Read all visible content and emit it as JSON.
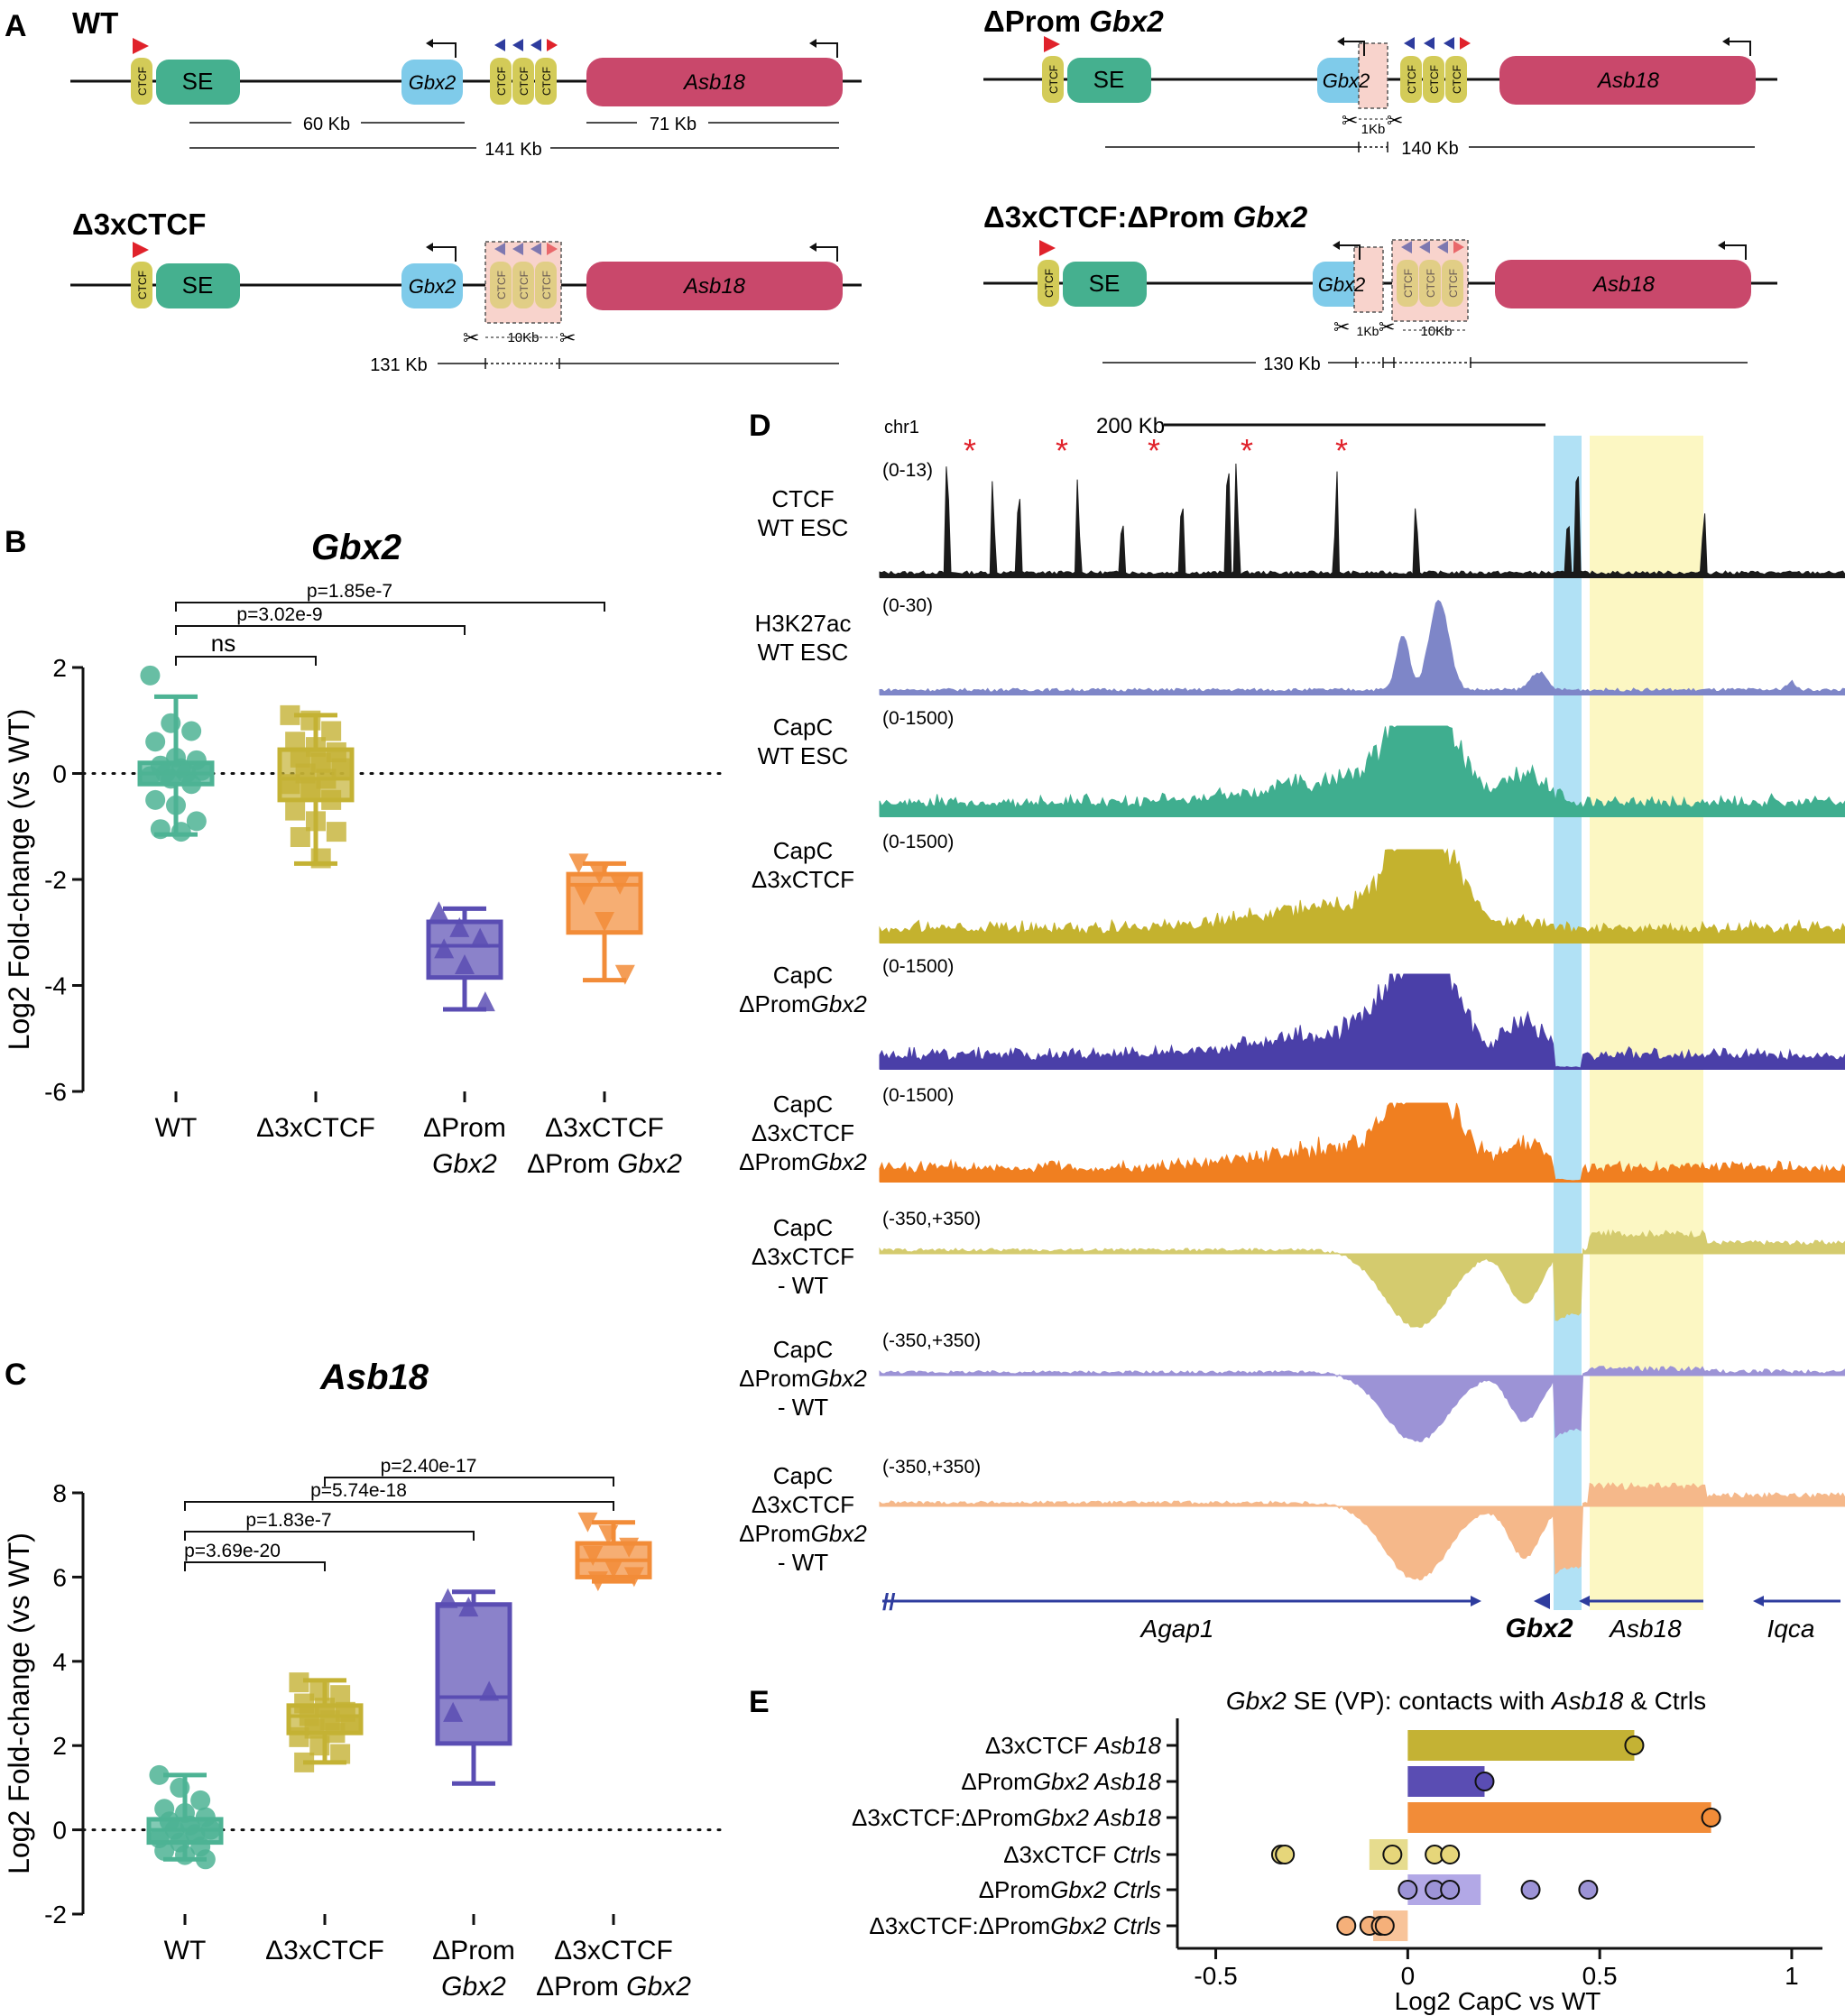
{
  "figure": {
    "panel_labels": [
      "A",
      "B",
      "C",
      "D",
      "E"
    ],
    "colors": {
      "wt": "#4DB394",
      "d3xctcf": "#C4B234",
      "dprom": "#5A4DB3",
      "double": "#F28C38",
      "se": "#45B08F",
      "gbx2": "#7FCBEA",
      "asb18": "#C9486B",
      "ctcf": "#D3CB58",
      "arrow_red": "#E0222B",
      "arrow_blue": "#2E3C9E",
      "cut": "#F8D3CC",
      "blue_band": "#9ED9F2",
      "yellow_band": "#FBF6B8"
    }
  },
  "panel_a": {
    "constructs": [
      {
        "title": "WT",
        "se": "SE",
        "gene1": "Gbx2",
        "gene2": "Asb18",
        "ctcf": "CTCF",
        "dist": [
          "60 Kb",
          "71 Kb",
          "141 Kb"
        ]
      },
      {
        "title_a": "ΔProm ",
        "title_b": "Gbx2",
        "se": "SE",
        "gene1": "Gbx2",
        "gene2": "Asb18",
        "ctcf": "CTCF",
        "cut": "1Kb",
        "dist": [
          "140 Kb"
        ]
      },
      {
        "title": "Δ3xCTCF",
        "se": "SE",
        "gene1": "Gbx2",
        "gene2": "Asb18",
        "ctcf": "CTCF",
        "cut": "10Kb",
        "dist": [
          "131 Kb"
        ]
      },
      {
        "title_a": "Δ3xCTCF:ΔProm ",
        "title_b": "Gbx2",
        "se": "SE",
        "gene1": "Gbx2",
        "gene2": "Asb18",
        "ctcf": "CTCF",
        "cut1": "1Kb",
        "cut2": "10Kb",
        "dist": [
          "130 Kb"
        ]
      }
    ]
  },
  "chart_data": [
    {
      "type": "box",
      "panel": "B",
      "title": "Gbx2",
      "ylabel": "Log2 Fold-change (vs WT)",
      "ylim": [
        -6,
        2
      ],
      "yticks": [
        "2",
        "0",
        "-2",
        "-4",
        "-6"
      ],
      "categories": [
        "WT",
        "Δ3xCTCF",
        "ΔProm Gbx2",
        "Δ3xCTCF ΔProm Gbx2"
      ],
      "xtick_lines": [
        [
          "WT"
        ],
        [
          "Δ3xCTCF"
        ],
        [
          "ΔProm",
          "Gbx2"
        ],
        [
          "Δ3xCTCF",
          "ΔProm Gbx2"
        ]
      ],
      "boxes": [
        {
          "min": -1.15,
          "q1": -0.2,
          "median": 0.0,
          "q3": 0.2,
          "max": 1.45
        },
        {
          "min": -1.7,
          "q1": -0.5,
          "median": -0.1,
          "q3": 0.45,
          "max": 1.1
        },
        {
          "min": -4.45,
          "q1": -3.85,
          "median": -3.25,
          "q3": -2.8,
          "max": -2.55
        },
        {
          "min": -3.9,
          "q1": -3.0,
          "median": -2.1,
          "q3": -1.9,
          "max": -1.7
        }
      ],
      "points": [
        [
          1.85,
          0.95,
          0.8,
          0.6,
          0.3,
          0.25,
          0.15,
          0.1,
          0.05,
          0.0,
          0.0,
          -0.05,
          -0.1,
          -0.2,
          -0.5,
          -0.6,
          -0.9,
          -1.05,
          -1.1
        ],
        [
          1.1,
          1.0,
          0.8,
          0.6,
          0.5,
          0.4,
          0.3,
          0.2,
          0.1,
          0.0,
          -0.1,
          -0.2,
          -0.3,
          -0.5,
          -0.7,
          -0.9,
          -1.1,
          -1.2,
          -1.6
        ],
        [
          -2.6,
          -2.9,
          -3.1,
          -3.3,
          -3.6,
          -4.3
        ],
        [
          -1.7,
          -1.9,
          -2.1,
          -2.3,
          -2.8,
          -3.8
        ]
      ],
      "markers": [
        "circle",
        "square",
        "triangle-up",
        "triangle-down"
      ],
      "comparisons": [
        {
          "label": "p=1.85e-7",
          "from": 0,
          "to": 3
        },
        {
          "label": "p=3.02e-9",
          "from": 0,
          "to": 2
        },
        {
          "label": "ns",
          "from": 0,
          "to": 1
        }
      ]
    },
    {
      "type": "box",
      "panel": "C",
      "title": "Asb18",
      "ylabel": "Log2 Fold-change (vs WT)",
      "ylim": [
        -2,
        8
      ],
      "yticks": [
        "8",
        "6",
        "4",
        "2",
        "0",
        "-2"
      ],
      "categories": [
        "WT",
        "Δ3xCTCF",
        "ΔProm Gbx2",
        "Δ3xCTCF ΔProm Gbx2"
      ],
      "xtick_lines": [
        [
          "WT"
        ],
        [
          "Δ3xCTCF"
        ],
        [
          "ΔProm",
          "Gbx2"
        ],
        [
          "Δ3xCTCF",
          "ΔProm Gbx2"
        ]
      ],
      "boxes": [
        {
          "min": -0.7,
          "q1": -0.3,
          "median": 0.0,
          "q3": 0.25,
          "max": 1.3
        },
        {
          "min": 1.6,
          "q1": 2.3,
          "median": 2.7,
          "q3": 2.95,
          "max": 3.55
        },
        {
          "min": 1.1,
          "q1": 2.05,
          "median": 3.15,
          "q3": 5.35,
          "max": 5.65
        },
        {
          "min": 5.9,
          "q1": 6.0,
          "median": 6.4,
          "q3": 6.8,
          "max": 7.3
        }
      ],
      "points": [
        [
          1.3,
          1.0,
          0.7,
          0.5,
          0.4,
          0.3,
          0.2,
          0.1,
          0.0,
          0.0,
          -0.1,
          -0.2,
          -0.3,
          -0.4,
          -0.5,
          -0.6,
          -0.7
        ],
        [
          3.5,
          3.3,
          3.2,
          3.0,
          2.9,
          2.8,
          2.7,
          2.6,
          2.5,
          2.4,
          2.3,
          2.2,
          2.0,
          1.8,
          1.6
        ],
        [
          5.5,
          5.3,
          3.3,
          2.8
        ],
        [
          7.3,
          7.0,
          6.7,
          6.5,
          6.2,
          6.0,
          5.9
        ]
      ],
      "markers": [
        "circle",
        "square",
        "triangle-up",
        "triangle-down"
      ],
      "comparisons": [
        {
          "label": "p=2.40e-17",
          "from": 1,
          "to": 3
        },
        {
          "label": "p=5.74e-18",
          "from": 0,
          "to": 3
        },
        {
          "label": "p=1.83e-7",
          "from": 0,
          "to": 2
        },
        {
          "label": "p=3.69e-20",
          "from": 0,
          "to": 1
        }
      ]
    },
    {
      "type": "area",
      "panel": "D",
      "chrom": "chr1",
      "scale": "200 Kb",
      "stars": [
        "*",
        "*",
        "*",
        "*",
        "*"
      ],
      "tracks": [
        {
          "lines": [
            "CTCF",
            "WT ESC"
          ],
          "range": "(0-13)",
          "color": "#1a1a1a"
        },
        {
          "lines": [
            "H3K27ac",
            "WT ESC"
          ],
          "range": "(0-30)",
          "color": "#7E86C8"
        },
        {
          "lines": [
            "CapC",
            "WT ESC"
          ],
          "range": "(0-1500)",
          "color": "#3FAE8F"
        },
        {
          "lines": [
            "CapC",
            "Δ3xCTCF"
          ],
          "range": "(0-1500)",
          "color": "#C4B22E"
        },
        {
          "lines": [
            "CapC",
            "ΔPromGbx2"
          ],
          "range": "(0-1500)",
          "color": "#4A3FA8"
        },
        {
          "lines": [
            "CapC",
            "Δ3xCTCF",
            "ΔPromGbx2"
          ],
          "range": "(0-1500)",
          "color": "#F07F20"
        },
        {
          "lines": [
            "CapC",
            "Δ3xCTCF",
            "- WT"
          ],
          "range": "(-350,+350)",
          "color": "#D4CB6E"
        },
        {
          "lines": [
            "CapC",
            "ΔPromGbx2",
            "- WT"
          ],
          "range": "(-350,+350)",
          "color": "#9C93D6"
        },
        {
          "lines": [
            "CapC",
            "Δ3xCTCF",
            "ΔPromGbx2",
            "- WT"
          ],
          "range": "(-350,+350)",
          "color": "#F5B88A"
        }
      ],
      "genes": [
        "Agap1",
        "Gbx2",
        "Asb18",
        "Iqca"
      ]
    },
    {
      "type": "bar",
      "panel": "E",
      "title_parts": [
        "Gbx2",
        " SE (VP): contacts with ",
        "Asb18",
        " & Ctrls"
      ],
      "xlabel": "Log2 CapC vs WT",
      "xlim": [
        -0.6,
        1.08
      ],
      "xticks": [
        "-0.5",
        "0",
        "0.5",
        "1"
      ],
      "xtick_values": [
        -0.5,
        0,
        0.5,
        1
      ],
      "categories": [
        "Δ3xCTCF Asb18",
        "ΔPromGbx2 Asb18",
        "Δ3xCTCF:ΔPromGbx2 Asb18",
        "Δ3xCTCF Ctrls",
        "ΔPromGbx2 Ctrls",
        "Δ3xCTCF:ΔPromGbx2 Ctrls"
      ],
      "label_parts": [
        [
          "Δ3xCTCF ",
          "Asb18"
        ],
        [
          "ΔProm",
          "Gbx2 ",
          "Asb18"
        ],
        [
          "Δ3xCTCF:ΔProm",
          "Gbx2 ",
          "Asb18"
        ],
        [
          "Δ3xCTCF ",
          "Ctrls"
        ],
        [
          "ΔProm",
          "Gbx2 ",
          "Ctrls"
        ],
        [
          "Δ3xCTCF:ΔProm",
          "Gbx2 ",
          "Ctrls"
        ]
      ],
      "values": [
        0.59,
        0.2,
        0.79,
        -0.1,
        0.19,
        -0.09
      ],
      "points": [
        [
          0.59
        ],
        [
          0.2
        ],
        [
          0.79
        ],
        [
          -0.33,
          -0.32,
          -0.04,
          0.07,
          0.11
        ],
        [
          0.0,
          0.07,
          0.11,
          0.32,
          0.47
        ],
        [
          -0.16,
          -0.1,
          -0.07,
          -0.06
        ]
      ],
      "bar_colors": [
        "#C4B234",
        "#5A4DB3",
        "#F28C38",
        "#E6DC8E",
        "#B2A8E6",
        "#F8C49A"
      ],
      "point_colors": [
        "#C4B234",
        "#5A4DB3",
        "#F28C38",
        "#E6D67A",
        "#9C93D6",
        "#F5B07A"
      ]
    }
  ]
}
